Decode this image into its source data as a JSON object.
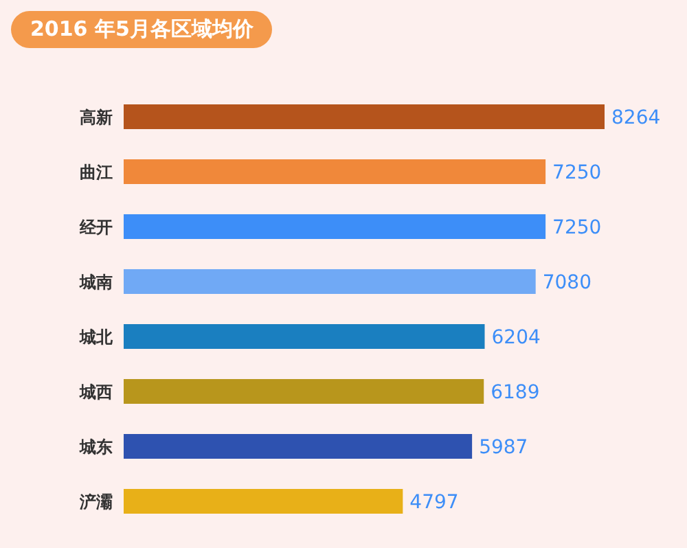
{
  "chart_data": {
    "type": "bar",
    "orientation": "horizontal",
    "title": "2016 年5月各区域均价",
    "categories": [
      "高新",
      "曲江",
      "经开",
      "城南",
      "城北",
      "城西",
      "城东",
      "浐灞"
    ],
    "values": [
      8264,
      7250,
      7250,
      7080,
      6204,
      6189,
      5987,
      4797
    ],
    "colors": [
      "#b5541c",
      "#f0883a",
      "#3d8ef8",
      "#70a9f5",
      "#1a7fc0",
      "#b8961c",
      "#2e52b0",
      "#e8b018"
    ],
    "data_labels": true
  }
}
